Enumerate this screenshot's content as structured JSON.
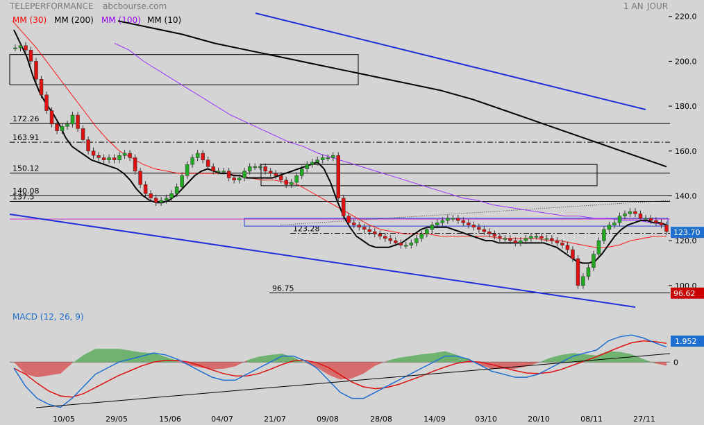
{
  "header": {
    "title": "TELEPERFORMANCE",
    "source": "abcbourse.com",
    "period": "1 AN",
    "interval": "JOUR"
  },
  "legend": [
    {
      "label": "MM (30)",
      "color": "#ff0000"
    },
    {
      "label": "MM (200)",
      "color": "#000000"
    },
    {
      "label": "MM (100)",
      "color": "#9900ff"
    },
    {
      "label": "MM (10)",
      "color": "#000000"
    }
  ],
  "macd_label": "MACD (12, 26, 9)",
  "chart_data": [
    {
      "type": "candlestick",
      "title": "",
      "ylim": [
        95,
        223
      ],
      "y_ticks": [
        "220.0",
        "200.0",
        "180.0",
        "160.0",
        "140.0",
        "120.0",
        "100.0"
      ],
      "x_labels": [
        "10/05",
        "29/05",
        "15/06",
        "04/07",
        "21/07",
        "09/08",
        "28/08",
        "14/09",
        "03/10",
        "20/10",
        "08/11",
        "27/11"
      ],
      "price_badges": [
        {
          "value": "123.70",
          "y": 123.7,
          "color": "#1f6fd1"
        },
        {
          "value": "96.62",
          "y": 96.62,
          "color": "#cc0000"
        }
      ],
      "levels": [
        {
          "label": "172.26",
          "y": 172.26,
          "style": "solid"
        },
        {
          "label": "163.91",
          "y": 163.91,
          "style": "dashdot"
        },
        {
          "label": "150.12",
          "y": 150.12,
          "style": "solid"
        },
        {
          "label": "140.08",
          "y": 140.08,
          "style": "solid"
        },
        {
          "label": "137.5",
          "y": 137.5,
          "style": "solid"
        },
        {
          "label": "123.28",
          "y": 123.28,
          "style": "dashdot"
        },
        {
          "label": "96.75",
          "y": 96.75,
          "style": "solid"
        }
      ],
      "series": {
        "close": [
          206,
          207,
          205,
          200,
          192,
          185,
          178,
          172,
          169,
          171,
          172,
          176,
          170,
          165,
          160,
          158,
          157,
          156,
          157,
          156,
          158,
          159,
          157,
          151,
          145,
          141,
          139,
          137,
          138,
          139,
          141,
          144,
          149,
          154,
          157,
          159,
          156,
          153,
          151,
          151,
          151,
          148,
          147,
          148,
          151,
          153,
          153,
          153,
          151,
          150,
          149,
          147,
          145,
          146,
          149,
          152,
          154,
          155,
          156,
          157,
          157,
          158,
          139,
          131,
          128,
          127,
          126,
          125,
          124,
          123,
          122,
          121,
          120,
          119,
          118,
          118,
          119,
          121,
          123,
          125,
          127,
          128,
          129,
          130,
          130,
          129,
          128,
          127,
          126,
          125,
          124,
          123,
          122,
          121,
          121,
          120,
          119,
          120,
          121,
          122,
          122,
          121,
          121,
          120,
          119,
          118,
          116,
          112,
          100,
          104,
          108,
          114,
          120,
          125,
          127,
          128,
          131,
          132,
          133,
          132,
          130,
          130,
          129,
          128,
          127,
          124
        ],
        "ma10": [
          214,
          208,
          202,
          193,
          186,
          181,
          177,
          172,
          166,
          162,
          160,
          158,
          156,
          155,
          154,
          153,
          152,
          150,
          147,
          143,
          140,
          138,
          137,
          137,
          138,
          140,
          143,
          146,
          149,
          151,
          152,
          151,
          150,
          150,
          149,
          149,
          148,
          148,
          148,
          148,
          148,
          149,
          150,
          151,
          152,
          153,
          154,
          155,
          152,
          146,
          138,
          131,
          126,
          122,
          120,
          118,
          117,
          117,
          117,
          118,
          119,
          121,
          123,
          125,
          126,
          126,
          126,
          126,
          125,
          124,
          123,
          122,
          121,
          120,
          120,
          119,
          119,
          119,
          119,
          119,
          119,
          119,
          119,
          118,
          117,
          115,
          113,
          111,
          110,
          110,
          111,
          114,
          118,
          122,
          125,
          127,
          128,
          129,
          129,
          128,
          128,
          127
        ],
        "ma30": [
          218,
          212,
          206,
          199,
          192,
          185,
          178,
          171,
          165,
          160,
          157,
          154,
          152,
          151,
          150,
          150,
          150,
          150,
          150,
          149,
          148,
          147,
          147,
          146,
          145,
          142,
          139,
          136,
          133,
          130,
          127,
          125,
          124,
          123,
          123,
          123,
          122,
          122,
          122,
          122,
          122,
          121,
          121,
          121,
          121,
          120,
          120,
          119,
          118,
          117,
          117,
          118,
          120,
          121,
          122,
          122
        ],
        "ma100": [
          208,
          205,
          200,
          196,
          192,
          188,
          184,
          180,
          176,
          173,
          170,
          167,
          164,
          162,
          159,
          157,
          155,
          153,
          151,
          149,
          147,
          145,
          143,
          141,
          139,
          138,
          136,
          135,
          134,
          133,
          132,
          131,
          131,
          130,
          130,
          129,
          129,
          128,
          127
        ],
        "ma200": [
          218,
          215,
          212,
          208,
          205,
          202,
          199,
          196,
          193,
          190,
          187,
          183,
          178,
          173,
          168,
          163,
          158,
          153
        ],
        "channel_top": [
          [
            145,
            222
          ],
          [
            215,
            180
          ]
        ],
        "channel_bottom": [
          [
            0,
            131
          ],
          [
            220,
            89
          ]
        ],
        "boxes": [
          {
            "x0": 0,
            "x1": 120,
            "y0": 189.5,
            "y1": 203
          },
          {
            "x0": 88,
            "x1": 200,
            "y0": 144.5,
            "y1": 154
          },
          {
            "x0": 80,
            "x1": 222,
            "y0": 126.5,
            "y1": 130
          }
        ]
      }
    },
    {
      "type": "macd",
      "title": "MACD (12, 26, 9)",
      "ylim": [
        -8,
        6
      ],
      "badges": [
        "1.952"
      ],
      "zero_label": "0",
      "series": {
        "macd": [
          -1,
          -4,
          -6,
          -7,
          -7.5,
          -6,
          -4,
          -2,
          -1,
          0,
          0.5,
          1,
          1.5,
          1.2,
          0.5,
          -0.5,
          -1.5,
          -2.5,
          -3,
          -3,
          -2,
          -1,
          0,
          1,
          1,
          0.2,
          -1,
          -3,
          -5,
          -6,
          -6,
          -5,
          -4,
          -3,
          -2,
          -1,
          0,
          1,
          1,
          0.5,
          -0.5,
          -1.5,
          -2,
          -2.5,
          -2.5,
          -2,
          -1,
          0,
          1,
          1.5,
          2,
          3.5,
          4.2,
          4.5,
          4,
          3.2,
          2.5
        ],
        "signal": [
          -1,
          -2,
          -3.5,
          -4.8,
          -5.6,
          -5.8,
          -5.2,
          -4.2,
          -3.2,
          -2.2,
          -1.4,
          -0.6,
          0,
          0.3,
          0.3,
          0,
          -0.6,
          -1.3,
          -1.9,
          -2.3,
          -2.3,
          -1.9,
          -1.2,
          -0.4,
          0.2,
          0.3,
          -0.1,
          -0.9,
          -2.1,
          -3.3,
          -4.1,
          -4.4,
          -4.2,
          -3.7,
          -3,
          -2.3,
          -1.5,
          -0.8,
          -0.2,
          0.1,
          0,
          -0.4,
          -0.9,
          -1.4,
          -1.8,
          -1.9,
          -1.7,
          -1.2,
          -0.5,
          0.2,
          0.9,
          1.7,
          2.5,
          3.2,
          3.5,
          3.4,
          3.1
        ],
        "trendline": [
          [
            0,
            -7.8
          ],
          [
            56,
            -1.3
          ]
        ]
      }
    }
  ]
}
